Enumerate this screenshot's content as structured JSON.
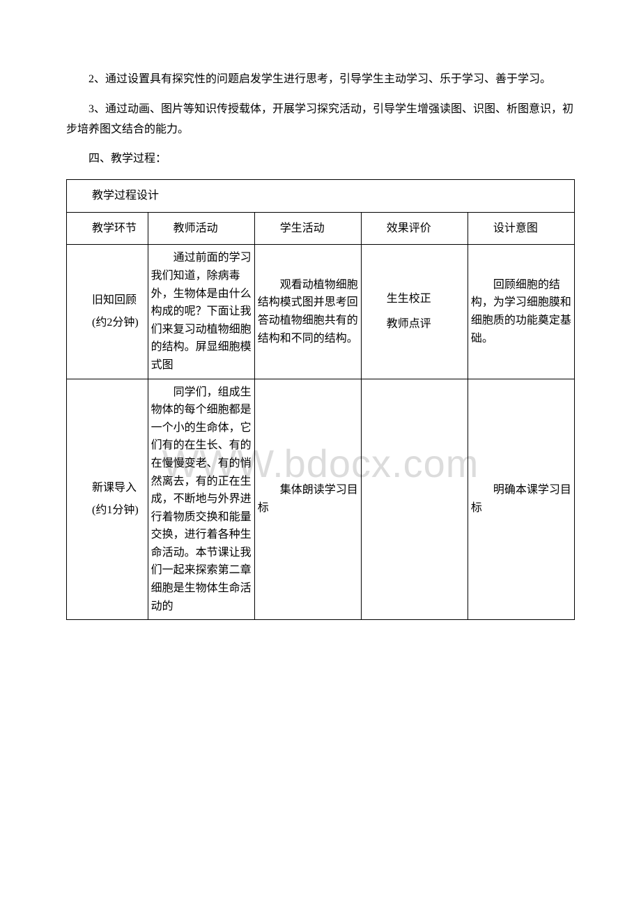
{
  "para1": "2、通过设置具有探究性的问题启发学生进行思考，引导学生主动学习、乐于学习、善于学习。",
  "para2": "3、通过动画、图片等知识传授载体，开展学习探究活动，引导学生增强读图、识图、析图意识，初步培养图文结合的能力。",
  "para3": "四、教学过程：",
  "watermark": "WWW.bdocx.com",
  "table": {
    "title": "教学过程设计",
    "headers": {
      "h1": "教学环节",
      "h2": "教师活动",
      "h3": "学生活动",
      "h4": "效果评价",
      "h5": "设计意图"
    },
    "rows": [
      {
        "c1": "旧知回顾\n(约2分钟)",
        "c2": "通过前面的学习我们知道，除病毒外，生物体是由什么构成的呢？下面让我们来复习动植物细胞的结构。屏显细胞模式图",
        "c3": "观看动植物细胞结构模式图并思考回答动植物细胞共有的结构和不同的结构。",
        "c4_line1": "生生校正",
        "c4_line2": "教师点评",
        "c5": "回顾细胞的结构，为学习细胞膜和细胞质的功能奠定基础。"
      },
      {
        "c1": "新课导入\n(约1分钟)",
        "c2": "同学们，组成生物体的每个细胞都是一个小的生命体，它们有的在生长、有的在慢慢变老、有的悄然离去，有的正在生成，不断地与外界进行着物质交换和能量交换，进行着各种生命活动。本节课让我们一起来探索第二章细胞是生物体生命活动的",
        "c3": "集体朗读学习目标",
        "c4": "",
        "c5": "明确本课学习目标"
      }
    ]
  }
}
